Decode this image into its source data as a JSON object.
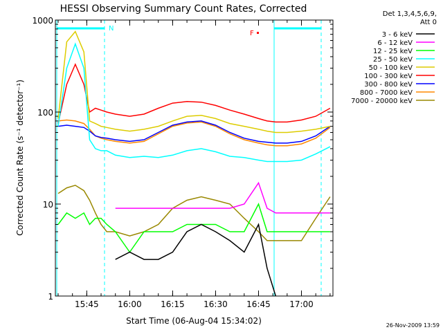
{
  "chart_data": {
    "type": "line",
    "title": "HESSI Observing Summary Count Rates, Corrected",
    "xlabel": "Start Time (06-Aug-04 15:34:02)",
    "ylabel": "Corrected Count Rate (s⁻¹ detector⁻¹)",
    "yscale": "log",
    "ylim": [
      1,
      1000
    ],
    "xlim": [
      "15:34:02",
      "17:11:00"
    ],
    "x_ticks": [
      "15:45",
      "16:00",
      "16:15",
      "16:30",
      "16:45",
      "17:00"
    ],
    "y_ticks": [
      "1",
      "10",
      "100",
      "1000"
    ],
    "legend_title": [
      "Det 1,3,4,5,6,9,",
      "Att 0"
    ],
    "legend_position": "right",
    "annotations": {
      "night_flag": "N",
      "flare_flag": "F",
      "timestamp": "26-Nov-2009 13:59"
    },
    "x": [
      "15:35",
      "15:38",
      "15:41",
      "15:44",
      "15:46",
      "15:48",
      "15:50",
      "15:52",
      "15:55",
      "16:00",
      "16:05",
      "16:10",
      "16:15",
      "16:20",
      "16:25",
      "16:30",
      "16:35",
      "16:40",
      "16:45",
      "16:48",
      "16:51",
      "16:55",
      "17:00",
      "17:05",
      "17:10"
    ],
    "series": [
      {
        "name": "3 - 6 keV",
        "color": "#000000",
        "values": [
          null,
          null,
          null,
          null,
          null,
          null,
          null,
          null,
          2.5,
          3,
          2.5,
          2.5,
          3,
          5,
          6,
          5,
          4,
          3,
          6,
          2,
          1,
          null,
          null,
          null,
          null
        ]
      },
      {
        "name": "6 - 12 keV",
        "color": "#ff00ff",
        "values": [
          null,
          null,
          null,
          null,
          null,
          null,
          null,
          null,
          9,
          9,
          9,
          9,
          9,
          9,
          9,
          9,
          9,
          10,
          17,
          9,
          8,
          8,
          8,
          8,
          8
        ]
      },
      {
        "name": "12 - 25 keV",
        "color": "#00ff00",
        "values": [
          6,
          8,
          7,
          8,
          6,
          7,
          7,
          6,
          5,
          3,
          5,
          5,
          5,
          6,
          6,
          6,
          5,
          5,
          10,
          5,
          5,
          5,
          5,
          5,
          5
        ]
      },
      {
        "name": "25 - 50 keV",
        "color": "#00ffff",
        "values": [
          70,
          300,
          550,
          300,
          50,
          40,
          38,
          38,
          34,
          32,
          33,
          32,
          34,
          38,
          40,
          37,
          33,
          32,
          30,
          29,
          29,
          29,
          30,
          35,
          42
        ]
      },
      {
        "name": "50 - 100 keV",
        "color": "#ddcc00",
        "values": [
          85,
          580,
          750,
          450,
          80,
          75,
          70,
          68,
          65,
          62,
          65,
          70,
          80,
          90,
          92,
          85,
          75,
          70,
          65,
          62,
          60,
          60,
          62,
          65,
          70
        ]
      },
      {
        "name": "100 - 300 keV",
        "color": "#ff0000",
        "values": [
          75,
          200,
          330,
          200,
          100,
          110,
          105,
          100,
          95,
          90,
          95,
          110,
          125,
          130,
          128,
          118,
          105,
          95,
          85,
          80,
          78,
          78,
          82,
          90,
          110
        ]
      },
      {
        "name": "300 - 800 keV",
        "color": "#0000ff",
        "values": [
          70,
          72,
          70,
          68,
          62,
          55,
          53,
          52,
          50,
          48,
          50,
          60,
          72,
          78,
          80,
          72,
          60,
          52,
          48,
          47,
          46,
          46,
          48,
          55,
          70
        ]
      },
      {
        "name": "800 - 7000 keV",
        "color": "#ff8800",
        "values": [
          80,
          82,
          80,
          75,
          65,
          55,
          52,
          50,
          48,
          46,
          48,
          58,
          70,
          76,
          78,
          70,
          58,
          50,
          46,
          44,
          43,
          43,
          45,
          52,
          68
        ]
      },
      {
        "name": "7000 - 20000 keV",
        "color": "#998800",
        "values": [
          13,
          15,
          16,
          14,
          11,
          8,
          6,
          5,
          5,
          4.5,
          5,
          6,
          9,
          11,
          12,
          11,
          10,
          7,
          5,
          4,
          4,
          4,
          4,
          7,
          12
        ]
      }
    ]
  }
}
